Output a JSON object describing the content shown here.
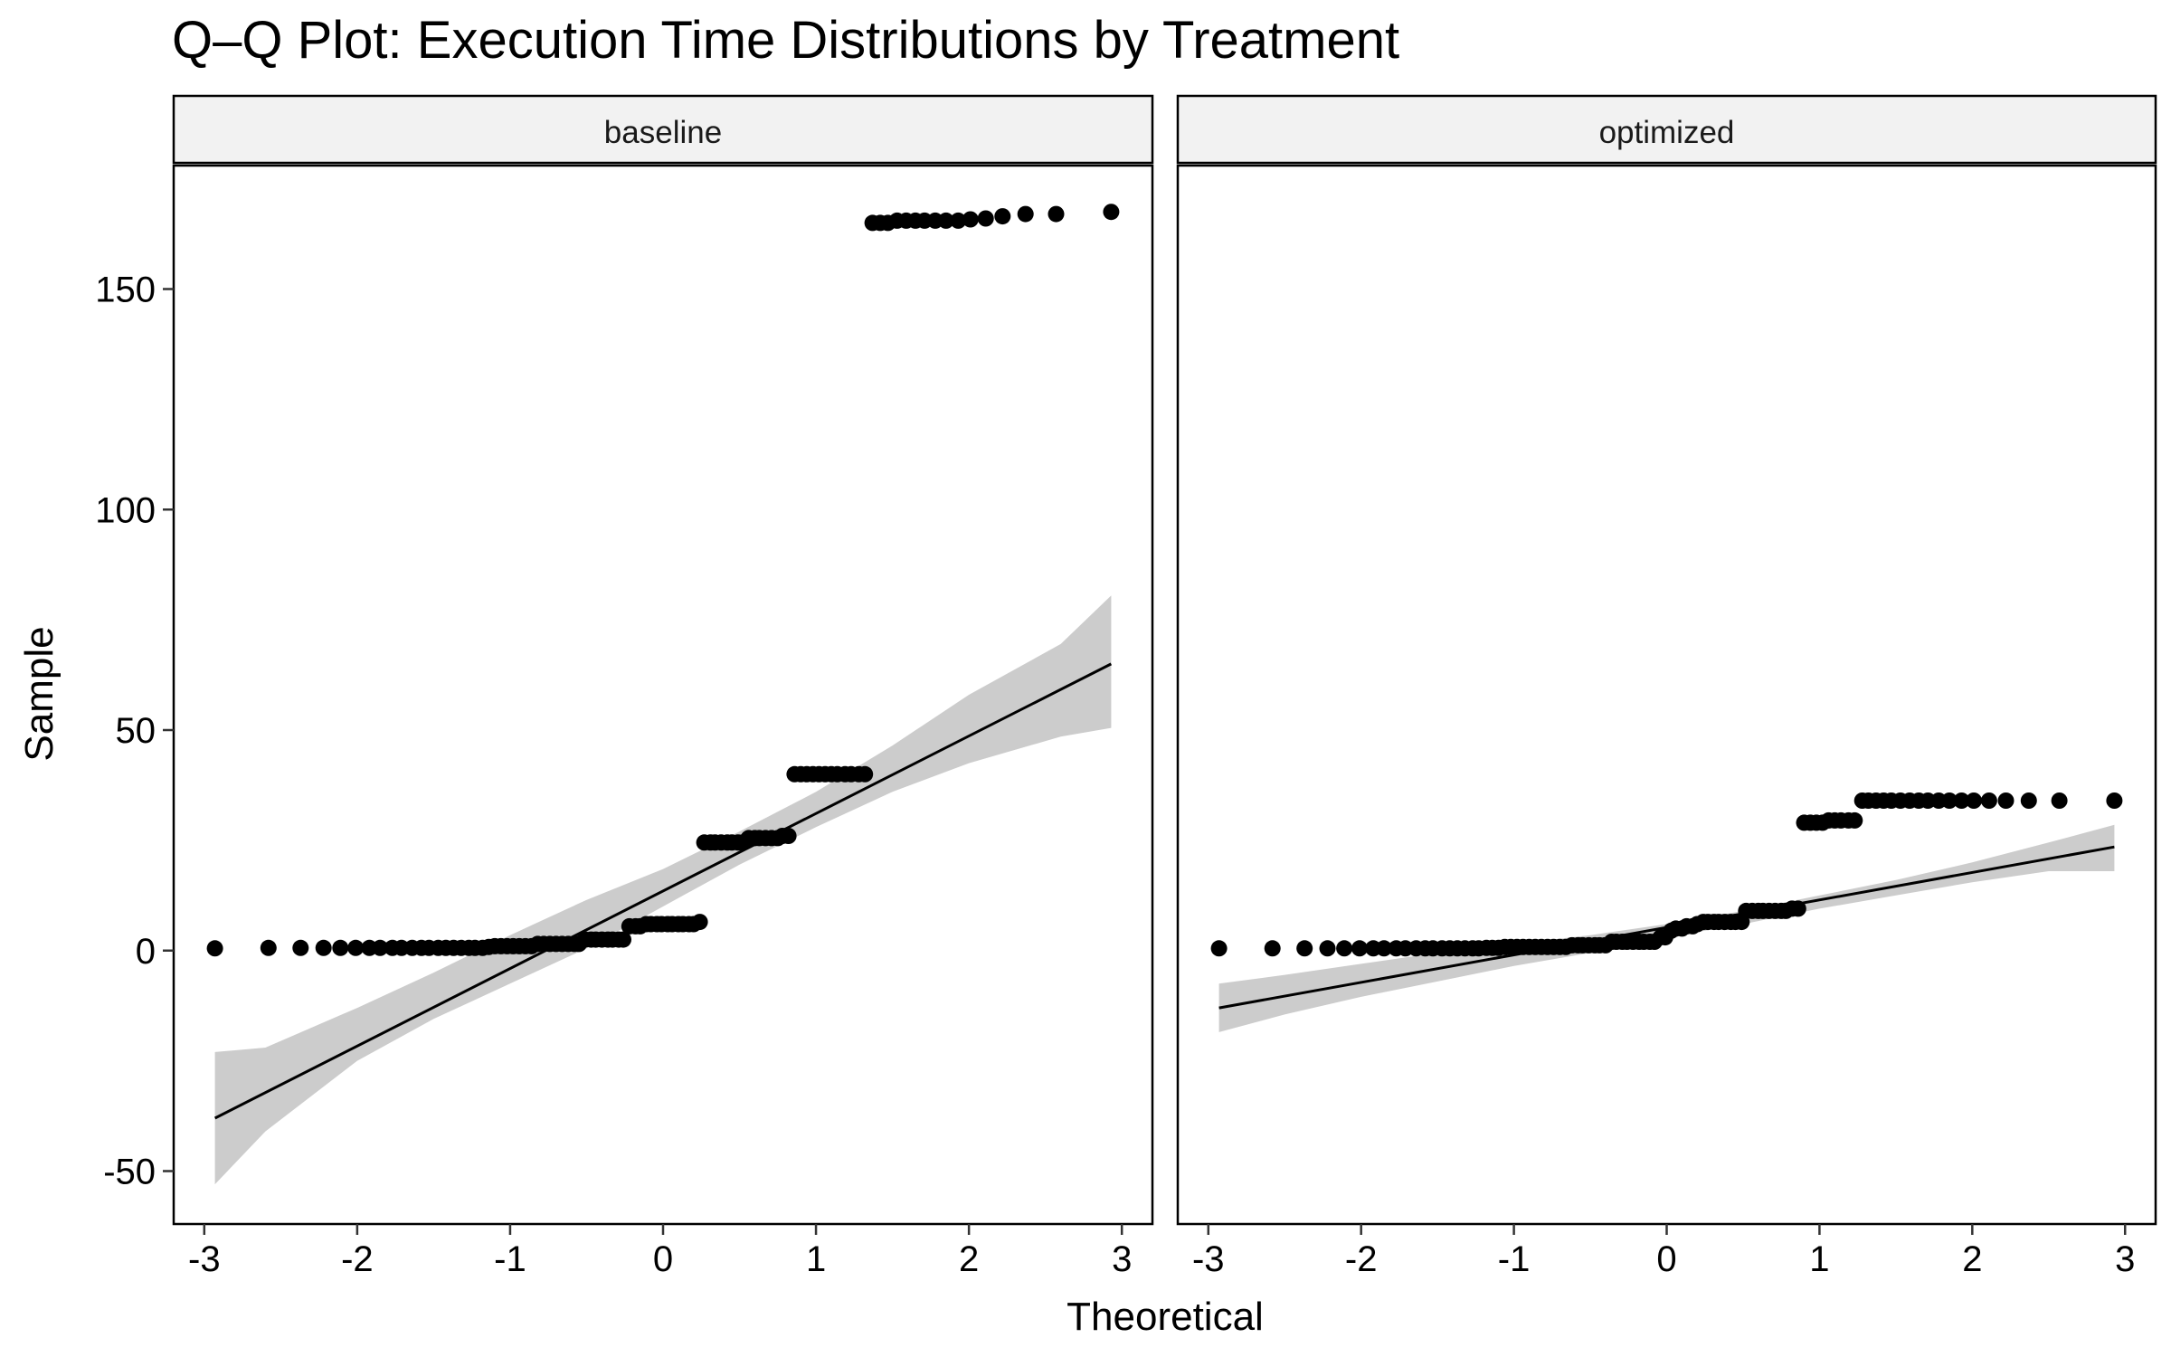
{
  "chart_data": {
    "type": "scatter",
    "title": "Q–Q Plot: Execution Time Distributions by Treatment",
    "xlabel": "Theoretical",
    "ylabel": "Sample",
    "xlim": [
      -3.2,
      3.2
    ],
    "ylim": [
      -62,
      178
    ],
    "x_ticks": [
      -3,
      -2,
      -1,
      0,
      1,
      2,
      3
    ],
    "x_tick_labels": [
      "-3",
      "-2",
      "-1",
      "0",
      "1",
      "2",
      "3"
    ],
    "y_ticks": [
      -50,
      0,
      50,
      100,
      150
    ],
    "y_tick_labels": [
      "-50",
      "0",
      "50",
      "100",
      "150"
    ],
    "grid": false,
    "point_color": "#000000",
    "ribbon_color": "#cccccc",
    "line_color": "#000000",
    "panels": [
      {
        "name": "baseline",
        "line": {
          "x": [
            -2.93,
            2.93
          ],
          "y": [
            -38,
            65
          ]
        },
        "ribbon": {
          "x": [
            -2.93,
            -2.6,
            -2,
            -1.5,
            -1,
            -0.5,
            0,
            0.5,
            1,
            1.5,
            2,
            2.6,
            2.93
          ],
          "lower": [
            -53,
            -41,
            -25,
            -15.5,
            -7.5,
            0.5,
            10,
            19.5,
            28,
            36,
            42.5,
            48.5,
            50.5
          ],
          "upper": [
            -23,
            -22,
            -13,
            -5,
            3.5,
            11.5,
            18.5,
            27,
            36,
            46.5,
            58,
            69.5,
            80.5
          ]
        },
        "points": {
          "x": [
            -2.93,
            -2.58,
            -2.37,
            -2.22,
            -2.11,
            -2.01,
            -1.92,
            -1.85,
            -1.77,
            -1.71,
            -1.64,
            -1.58,
            -1.53,
            -1.47,
            -1.42,
            -1.37,
            -1.32,
            -1.27,
            -1.23,
            -1.18,
            -1.14,
            -1.1,
            -1.06,
            -1.02,
            -0.98,
            -0.94,
            -0.9,
            -0.86,
            -0.82,
            -0.78,
            -0.74,
            -0.7,
            -0.66,
            -0.62,
            -0.58,
            -0.55,
            -0.51,
            -0.47,
            -0.44,
            -0.4,
            -0.36,
            -0.33,
            -0.29,
            -0.26,
            -0.22,
            -0.18,
            -0.15,
            -0.11,
            -0.08,
            -0.04,
            -0.01,
            0.03,
            0.06,
            0.1,
            0.13,
            0.17,
            0.2,
            0.24,
            0.27,
            0.31,
            0.34,
            0.38,
            0.42,
            0.45,
            0.49,
            0.52,
            0.56,
            0.6,
            0.63,
            0.67,
            0.71,
            0.75,
            0.78,
            0.82,
            0.86,
            0.9,
            0.94,
            0.98,
            1.02,
            1.06,
            1.1,
            1.14,
            1.19,
            1.23,
            1.28,
            1.32,
            1.37,
            1.42,
            1.47,
            1.53,
            1.59,
            1.65,
            1.71,
            1.78,
            1.85,
            1.93,
            2.01,
            2.11,
            2.22,
            2.37,
            2.57,
            2.93
          ],
          "y": [
            0.5,
            0.6,
            0.6,
            0.6,
            0.6,
            0.6,
            0.6,
            0.6,
            0.6,
            0.6,
            0.6,
            0.6,
            0.6,
            0.6,
            0.6,
            0.6,
            0.6,
            0.6,
            0.6,
            0.6,
            0.8,
            1,
            1,
            1,
            1,
            1,
            1,
            1,
            1.5,
            1.5,
            1.5,
            1.5,
            1.5,
            1.5,
            1.5,
            1.5,
            2.5,
            2.5,
            2.5,
            2.5,
            2.5,
            2.5,
            2.5,
            2.5,
            5.5,
            5.5,
            5.5,
            6,
            6,
            6,
            6,
            6,
            6,
            6,
            6,
            6,
            6,
            6.5,
            24.5,
            24.5,
            24.5,
            24.5,
            24.5,
            24.5,
            24.5,
            24.5,
            25.5,
            25.5,
            25.5,
            25.5,
            25.5,
            25.5,
            26,
            26,
            40,
            40,
            40,
            40,
            40,
            40,
            40,
            40,
            40,
            40,
            40,
            40,
            165,
            165,
            165,
            165.5,
            165.5,
            165.5,
            165.5,
            165.5,
            165.5,
            165.5,
            165.8,
            166,
            166.5,
            167,
            167,
            167.5
          ]
        }
      },
      {
        "name": "optimized",
        "line": {
          "x": [
            -2.93,
            2.93
          ],
          "y": [
            -13,
            23.5
          ]
        },
        "ribbon": {
          "x": [
            -2.93,
            -2.5,
            -2,
            -1.5,
            -1,
            -0.5,
            0,
            0.5,
            1,
            1.5,
            2,
            2.5,
            2.93
          ],
          "lower": [
            -18.5,
            -14.5,
            -10.5,
            -7,
            -3.5,
            -0.5,
            3,
            6,
            9.5,
            12.5,
            15.5,
            18,
            18
          ],
          "upper": [
            -7.5,
            -5.5,
            -3,
            -0.5,
            1.5,
            3.5,
            6,
            9,
            12.5,
            16,
            20,
            24.5,
            28.5
          ]
        },
        "points": {
          "x": [
            -2.93,
            -2.58,
            -2.37,
            -2.22,
            -2.11,
            -2.01,
            -1.92,
            -1.85,
            -1.77,
            -1.71,
            -1.64,
            -1.58,
            -1.53,
            -1.47,
            -1.42,
            -1.37,
            -1.32,
            -1.27,
            -1.23,
            -1.18,
            -1.14,
            -1.1,
            -1.06,
            -1.02,
            -0.98,
            -0.94,
            -0.9,
            -0.86,
            -0.82,
            -0.78,
            -0.74,
            -0.7,
            -0.66,
            -0.62,
            -0.58,
            -0.55,
            -0.51,
            -0.47,
            -0.44,
            -0.4,
            -0.36,
            -0.33,
            -0.29,
            -0.26,
            -0.22,
            -0.18,
            -0.15,
            -0.11,
            -0.08,
            -0.04,
            -0.01,
            0.03,
            0.06,
            0.1,
            0.13,
            0.17,
            0.2,
            0.24,
            0.27,
            0.31,
            0.34,
            0.38,
            0.42,
            0.45,
            0.49,
            0.52,
            0.56,
            0.6,
            0.63,
            0.67,
            0.71,
            0.75,
            0.78,
            0.82,
            0.86,
            0.9,
            0.94,
            0.98,
            1.02,
            1.06,
            1.1,
            1.14,
            1.19,
            1.23,
            1.28,
            1.32,
            1.37,
            1.42,
            1.47,
            1.53,
            1.59,
            1.65,
            1.71,
            1.78,
            1.85,
            1.93,
            2.01,
            2.11,
            2.22,
            2.37,
            2.57,
            2.93
          ],
          "y": [
            0.5,
            0.5,
            0.5,
            0.5,
            0.5,
            0.5,
            0.5,
            0.5,
            0.5,
            0.5,
            0.5,
            0.5,
            0.5,
            0.5,
            0.5,
            0.5,
            0.5,
            0.5,
            0.5,
            0.6,
            0.6,
            0.6,
            0.8,
            0.8,
            0.8,
            0.8,
            0.8,
            0.8,
            0.8,
            0.8,
            0.8,
            0.8,
            0.8,
            1.2,
            1.2,
            1.2,
            1.2,
            1.2,
            1.2,
            1.2,
            2,
            2,
            2,
            2,
            2,
            2,
            2,
            2,
            2,
            3,
            3,
            4.5,
            5,
            5,
            5.5,
            5.5,
            6,
            6.5,
            6.5,
            6.5,
            6.5,
            6.5,
            6.5,
            6.5,
            6.5,
            9,
            9,
            9,
            9,
            9,
            9,
            9,
            9,
            9.5,
            9.5,
            29,
            29,
            29,
            29,
            29.5,
            29.5,
            29.5,
            29.5,
            29.5,
            34,
            34,
            34,
            34,
            34,
            34,
            34,
            34,
            34,
            34,
            34,
            34,
            34,
            34,
            34,
            34,
            34,
            34
          ]
        }
      }
    ]
  }
}
